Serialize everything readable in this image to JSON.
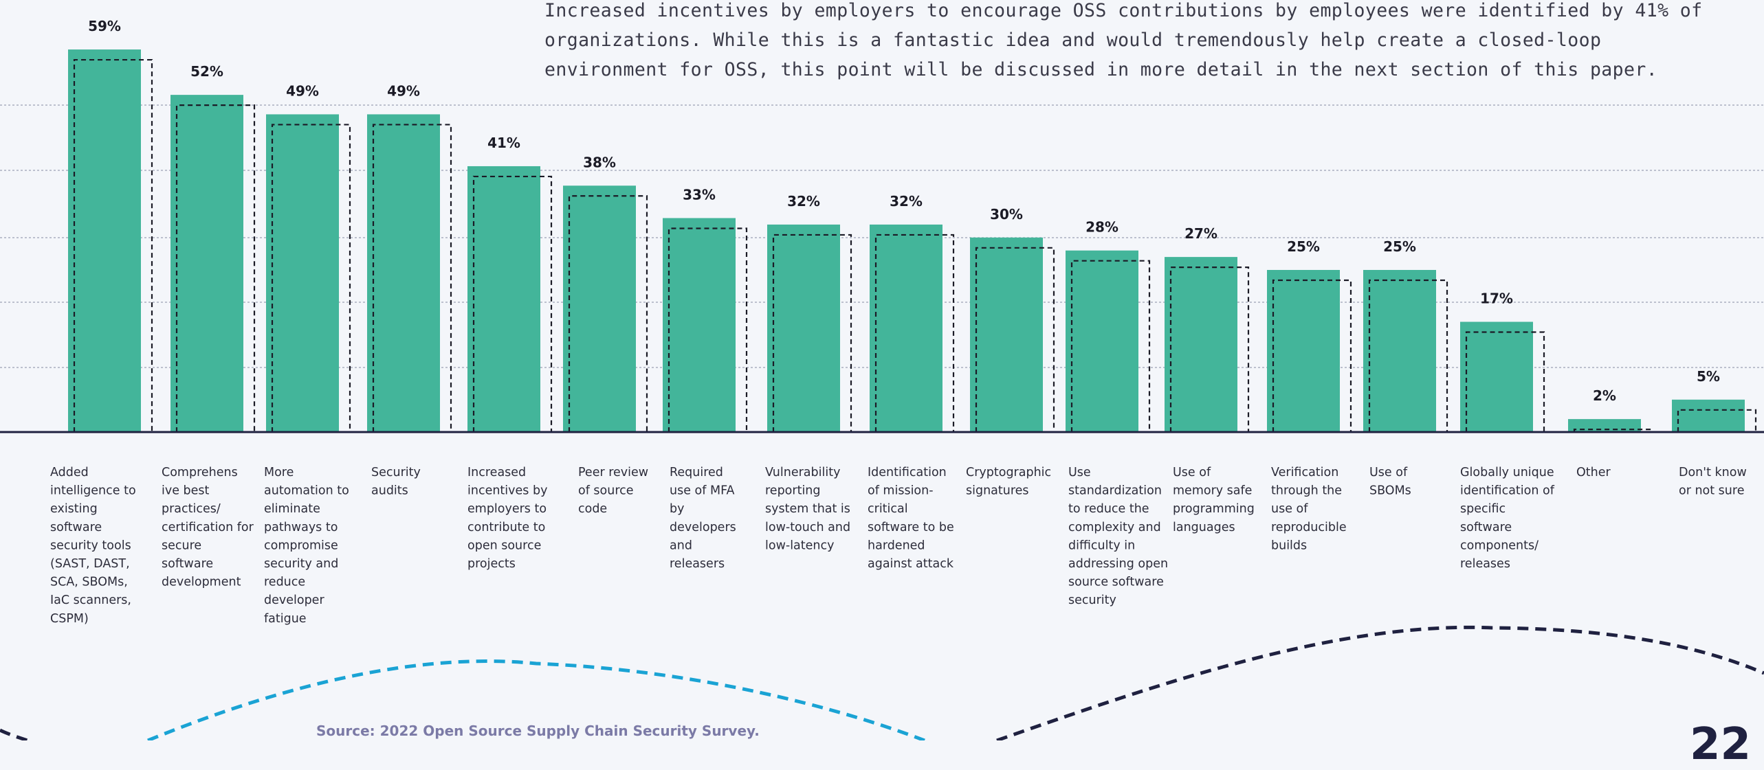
{
  "intro_text": "Increased incentives by employers to encourage OSS contributions by employees were identified by 41% of organizations. While this is a fantastic idea and would tremendously help create a closed-loop environment for OSS, this point will be discussed in more detail in the next section of this paper.",
  "source": "Source: 2022 Open Source Supply Chain Security Survey.",
  "page_number": "22",
  "colors": {
    "bar": "#43b59a",
    "outline": "#1b1b26",
    "grid": "#9aa0b4",
    "axis": "#1f2140",
    "deco_blue": "#1aa3d4",
    "deco_navy": "#1f2140"
  },
  "chart_data": {
    "type": "bar",
    "categories": [
      "Added intelligence to existing software security tools (SAST, DAST, SCA, SBOMs, IaC scanners, CSPM)",
      "Comprehensive best practices/ certification for secure software development",
      "More automation to eliminate pathways to compromise security and reduce developer fatigue",
      "Security audits",
      "Increased incentives by employers to contribute to open source projects",
      "Peer review of source code",
      "Required use of MFA by developers and releasers",
      "Vulnerability reporting system that is low-touch and low-latency",
      "Identification of mission-critical software to be hardened against attack",
      "Cryptographic signatures",
      "Use standardization to reduce the complexity and difficulty in addressing open source software security",
      "Use of memory safe programming languages",
      "Verification through the use of reproducible builds",
      "Use of SBOMs",
      "Globally unique identification of specific software components/ releases",
      "Other",
      "Don't know or not sure"
    ],
    "category_lines": [
      [
        "Added",
        "intelligence to",
        "existing",
        "software",
        "security tools",
        "(SAST, DAST,",
        "SCA, SBOMs,",
        "IaC scanners,",
        "CSPM)"
      ],
      [
        "Comprehens",
        "ive best",
        "practices/",
        "certification for",
        "secure",
        "software",
        "development"
      ],
      [
        "More",
        "automation to",
        "eliminate",
        "pathways to",
        "compromise",
        "security and",
        "reduce",
        "developer",
        "fatigue"
      ],
      [
        "Security",
        "audits"
      ],
      [
        "Increased",
        "incentives by",
        "employers to",
        "contribute to",
        "open source",
        "projects"
      ],
      [
        "Peer review",
        "of source",
        "code"
      ],
      [
        "Required",
        "use of MFA",
        "by",
        "developers",
        "and",
        "releasers"
      ],
      [
        "Vulnerability",
        "reporting",
        "system that is",
        "low-touch and",
        "low-latency"
      ],
      [
        "Identification",
        "of mission-",
        "critical",
        "software to be",
        "hardened",
        "against attack"
      ],
      [
        "Cryptographic",
        "signatures"
      ],
      [
        "Use",
        "standardization",
        "to reduce the",
        "complexity and",
        "difficulty in",
        "addressing open",
        "source software",
        "security"
      ],
      [
        "Use of",
        "memory safe",
        "programming",
        "languages"
      ],
      [
        "Verification",
        "through the",
        "use of",
        "reproducible",
        "builds"
      ],
      [
        "Use of",
        "SBOMs"
      ],
      [
        "Globally unique",
        "identification of",
        "specific",
        "software",
        "components/",
        "releases"
      ],
      [
        "Other"
      ],
      [
        "Don't know",
        "or not sure"
      ]
    ],
    "values": [
      59,
      52,
      49,
      49,
      41,
      38,
      33,
      32,
      32,
      30,
      28,
      27,
      25,
      25,
      17,
      2,
      5
    ],
    "value_labels": [
      "59%",
      "52%",
      "49%",
      "49%",
      "41%",
      "38%",
      "33%",
      "32%",
      "32%",
      "30%",
      "28%",
      "27%",
      "25%",
      "25%",
      "17%",
      "2%",
      "5%"
    ],
    "ylim": [
      0,
      60
    ],
    "grid": true,
    "legend": "none",
    "xlabel": "",
    "ylabel": ""
  }
}
